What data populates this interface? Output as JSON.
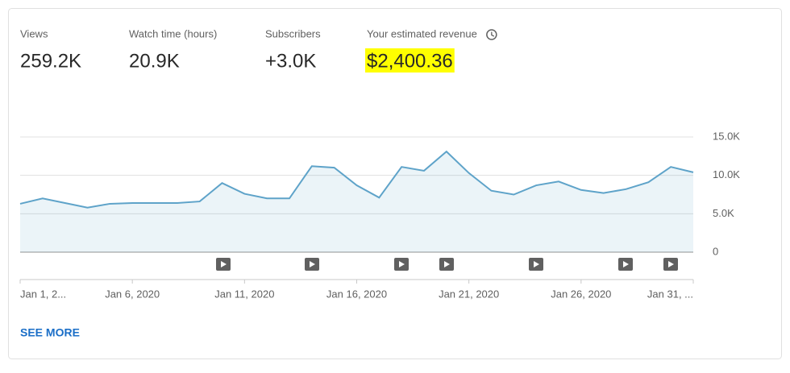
{
  "metrics": [
    {
      "label": "Views",
      "value": "259.2K"
    },
    {
      "label": "Watch time (hours)",
      "value": "20.9K"
    },
    {
      "label": "Subscribers",
      "value": "+3.0K"
    },
    {
      "label": "Your estimated revenue",
      "value": "$2,400.36"
    }
  ],
  "chart_data": {
    "type": "line",
    "categories": [
      "Jan 1, 2...",
      null,
      null,
      null,
      null,
      "Jan 6, 2020",
      null,
      null,
      null,
      null,
      "Jan 11, 2020",
      null,
      null,
      null,
      null,
      "Jan 16, 2020",
      null,
      null,
      null,
      null,
      "Jan 21, 2020",
      null,
      null,
      null,
      null,
      "Jan 26, 2020",
      null,
      null,
      null,
      null,
      "Jan 31, ..."
    ],
    "values": [
      6300,
      7000,
      6400,
      5800,
      6300,
      6400,
      6400,
      6400,
      6600,
      9000,
      7600,
      7000,
      7000,
      11200,
      11000,
      8700,
      7100,
      11100,
      10600,
      13100,
      10300,
      8000,
      7500,
      8700,
      9200,
      8100,
      7700,
      8200,
      9100,
      11100,
      10400
    ],
    "color": "#5ea3c9",
    "ylim": [
      0,
      15000
    ],
    "yticks": [
      0,
      {
        "value": 5000,
        "label": "5.0K"
      },
      {
        "value": 10000,
        "label": "10.0K"
      },
      {
        "value": 15000,
        "label": "15.0K"
      }
    ],
    "grid": true
  },
  "link": "SEE MORE"
}
